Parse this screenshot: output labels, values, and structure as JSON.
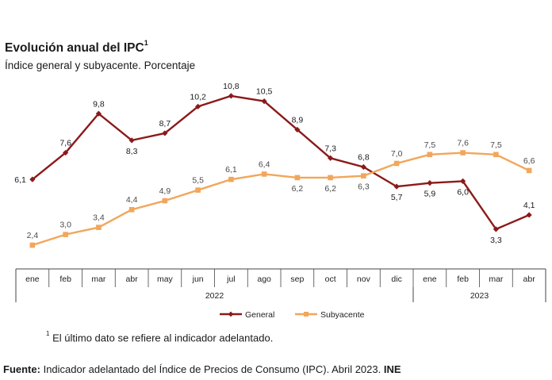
{
  "title": "Evolución anual del IPC",
  "title_sup": "1",
  "subtitle": "Índice general y subyacente. Porcentaje",
  "footnote_sup": "1",
  "footnote": "El último dato se refiere al indicador adelantado.",
  "source_label": "Fuente:",
  "source_text": "Indicador adelantado del Índice de Precios de Consumo (IPC).  Abril 2023.",
  "source_org": "INE",
  "chart_data": {
    "type": "line",
    "categories": [
      "ene",
      "feb",
      "mar",
      "abr",
      "may",
      "jun",
      "jul",
      "ago",
      "sep",
      "oct",
      "nov",
      "dic",
      "ene",
      "feb",
      "mar",
      "abr"
    ],
    "year_groups": [
      {
        "label": "2022",
        "from": 0,
        "to": 11
      },
      {
        "label": "2023",
        "from": 12,
        "to": 15
      }
    ],
    "series": [
      {
        "name": "General",
        "color": "#8b1a1a",
        "marker": "diamond",
        "values": [
          6.1,
          7.6,
          9.8,
          8.3,
          8.7,
          10.2,
          10.8,
          10.5,
          8.9,
          7.3,
          6.8,
          5.7,
          5.9,
          6.0,
          3.3,
          4.1
        ],
        "labels": [
          "6,1",
          "7,6",
          "9,8",
          "8,3",
          "8,7",
          "10,2",
          "10,8",
          "10,5",
          "8,9",
          "7,3",
          "6,8",
          "5,7",
          "5,9",
          "6,0",
          "3,3",
          "4,1"
        ]
      },
      {
        "name": "Subyacente",
        "color": "#f2a65a",
        "marker": "square",
        "values": [
          2.4,
          3.0,
          3.4,
          4.4,
          4.9,
          5.5,
          6.1,
          6.4,
          6.2,
          6.2,
          6.3,
          7.0,
          7.5,
          7.6,
          7.5,
          6.6
        ],
        "labels": [
          "2,4",
          "3,0",
          "3,4",
          "4,4",
          "4,9",
          "5,5",
          "6,1",
          "6,4",
          "6,2",
          "6,2",
          "6,3",
          "7,0",
          "7,5",
          "7,6",
          "7,5",
          "6,6"
        ]
      }
    ]
  }
}
